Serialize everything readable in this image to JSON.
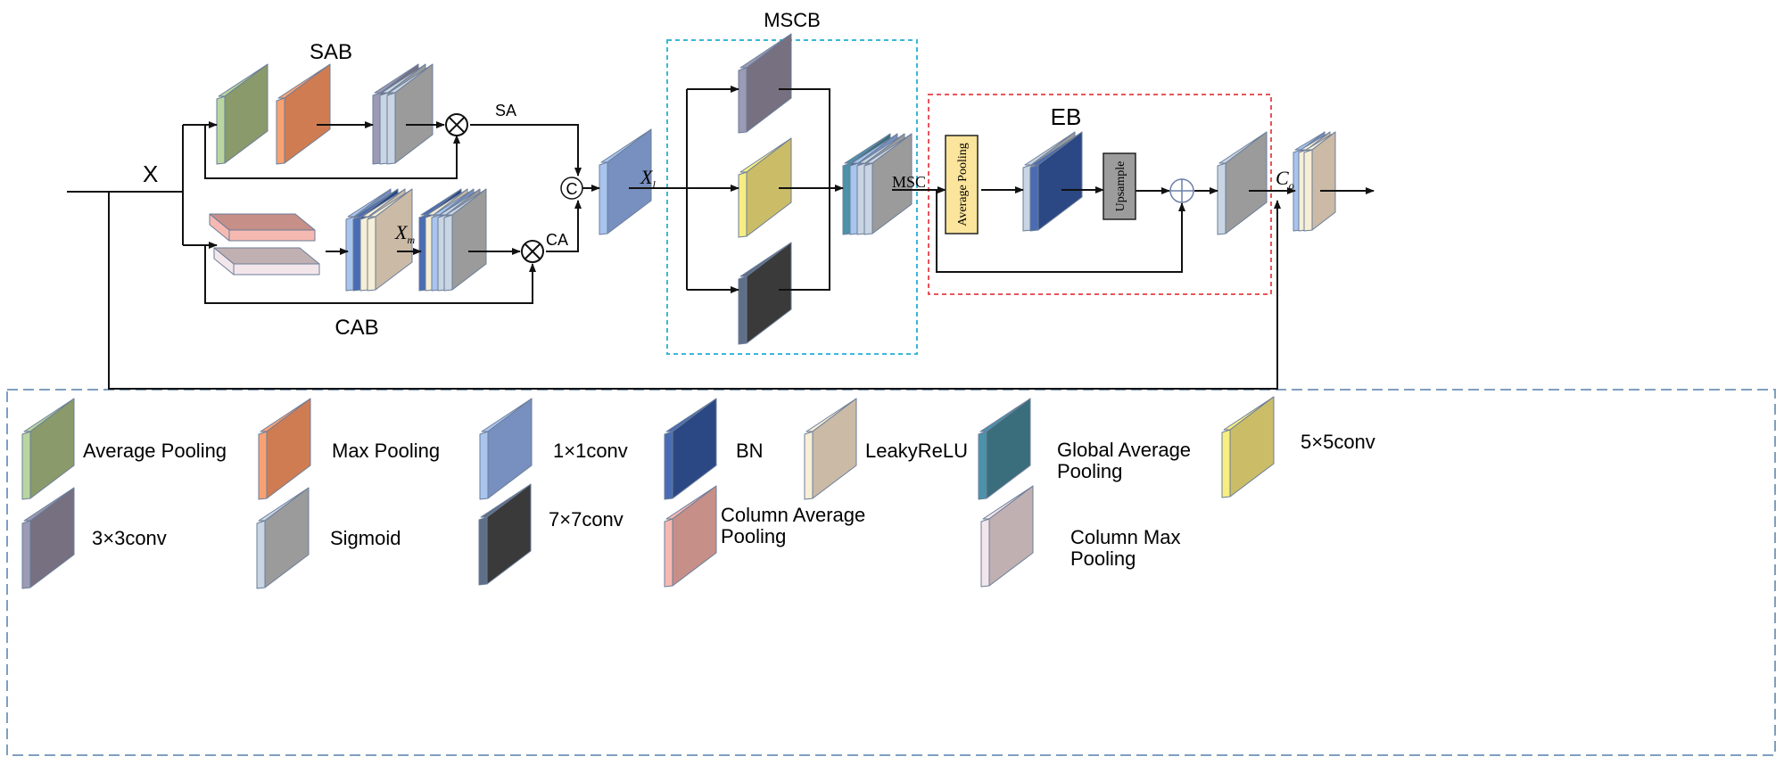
{
  "labels": {
    "input": "X",
    "sab": "SAB",
    "cab": "CAB",
    "sa": "SA",
    "ca": "CA",
    "concat_symbol": "C",
    "xm": "X",
    "xm_sub": "m",
    "xl": "X",
    "xl_sub": "l",
    "mscb": "MSCB",
    "msc": "MSC",
    "eb": "EB",
    "eb_avg_pool": "Average Pooling",
    "eb_upsample": "Upsample",
    "co": "C",
    "co_sub": "o"
  },
  "colors": {
    "mscb_border": "#3ab7d8",
    "eb_border": "#e8545a",
    "legend_border": "#7f9fbf",
    "avg_pool_box": "#fbe49b",
    "upsample_box": "#9c9c9c"
  },
  "legend": [
    {
      "key": "avg_pool",
      "label": [
        "Average Pooling"
      ],
      "face": "#8a9a6a",
      "strip": "#b9d6a0"
    },
    {
      "key": "max_pool",
      "label": [
        "Max Pooling"
      ],
      "face": "#d07c52",
      "strip": "#f8a274"
    },
    {
      "key": "conv1",
      "label": [
        "1×1conv"
      ],
      "face": "#7890bf",
      "strip": "#a9c5ee"
    },
    {
      "key": "bn",
      "label": [
        "BN"
      ],
      "face": "#2b4884",
      "strip": "#4a6cb2"
    },
    {
      "key": "leaky",
      "label": [
        "LeakyReLU"
      ],
      "face": "#cbbaa6",
      "strip": "#f6eed6"
    },
    {
      "key": "gap",
      "label": [
        "Global Average",
        "Pooling"
      ],
      "face": "#3a6e7c",
      "strip": "#4b92aa"
    },
    {
      "key": "conv5",
      "label": [
        "5×5conv"
      ],
      "face": "#cbbd68",
      "strip": "#f6ee82"
    },
    {
      "key": "conv3",
      "label": [
        "3×3conv"
      ],
      "face": "#767080",
      "strip": "#9c9ab4"
    },
    {
      "key": "sigmoid",
      "label": [
        "Sigmoid"
      ],
      "face": "#9b9b9b",
      "strip": "#c9d5e2"
    },
    {
      "key": "conv7",
      "label": [
        "7×7conv"
      ],
      "face": "#3a3a3a",
      "strip": "#5f6f88"
    },
    {
      "key": "col_avg",
      "label": [
        "Column Average",
        "Pooling"
      ],
      "face": "#c68f88",
      "strip": "#f6b9b1"
    },
    {
      "key": "col_max",
      "label": [
        "Column Max",
        "Pooling"
      ],
      "face": "#c1b0b1",
      "strip": "#f3e6ea"
    }
  ]
}
